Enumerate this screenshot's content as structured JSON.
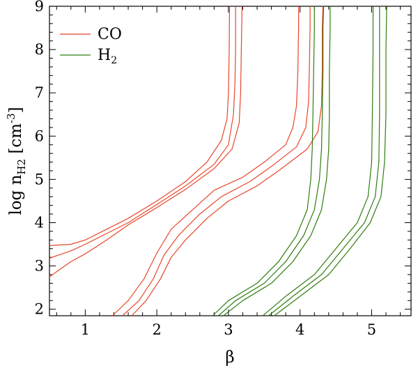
{
  "chart_data": {
    "type": "line",
    "title": "",
    "xlabel": "β",
    "ylabel": {
      "main": "log n",
      "subscript": "H2",
      "unit_open": " [cm",
      "unit_sup": "-3",
      "unit_close": "]"
    },
    "xlim": [
      0.5,
      5.55
    ],
    "ylim": [
      1.85,
      9.0
    ],
    "xticks": [
      1,
      2,
      3,
      4,
      5
    ],
    "yticks": [
      2,
      3,
      4,
      5,
      6,
      7,
      8,
      9
    ],
    "legend": {
      "placement": "top-left",
      "entries": [
        {
          "label": "CO",
          "color": "#e8452a"
        },
        {
          "label": "H",
          "subscript": "2",
          "color": "#2e7d10"
        }
      ]
    },
    "series": [
      {
        "group": "CO",
        "color": "#e8452a",
        "points": [
          [
            0.5,
            3.47
          ],
          [
            0.8,
            3.5
          ],
          [
            1.0,
            3.6
          ],
          [
            1.3,
            3.85
          ],
          [
            1.6,
            4.1
          ],
          [
            2.0,
            4.5
          ],
          [
            2.4,
            4.95
          ],
          [
            2.7,
            5.4
          ],
          [
            2.9,
            5.9
          ],
          [
            2.98,
            6.4
          ],
          [
            3.0,
            7.0
          ],
          [
            3.01,
            8.0
          ],
          [
            3.015,
            9.0
          ]
        ]
      },
      {
        "group": "CO",
        "color": "#e8452a",
        "points": [
          [
            0.5,
            3.18
          ],
          [
            0.8,
            3.35
          ],
          [
            1.0,
            3.5
          ],
          [
            1.3,
            3.75
          ],
          [
            1.6,
            4.0
          ],
          [
            2.0,
            4.42
          ],
          [
            2.4,
            4.85
          ],
          [
            2.8,
            5.35
          ],
          [
            3.0,
            5.8
          ],
          [
            3.07,
            6.5
          ],
          [
            3.09,
            7.2
          ],
          [
            3.1,
            8.0
          ],
          [
            3.1,
            9.0
          ]
        ]
      },
      {
        "group": "CO",
        "color": "#e8452a",
        "points": [
          [
            0.5,
            2.75
          ],
          [
            0.8,
            3.1
          ],
          [
            1.0,
            3.28
          ],
          [
            1.3,
            3.6
          ],
          [
            1.6,
            3.95
          ],
          [
            2.0,
            4.35
          ],
          [
            2.4,
            4.77
          ],
          [
            2.8,
            5.25
          ],
          [
            3.05,
            5.7
          ],
          [
            3.15,
            6.3
          ],
          [
            3.17,
            7.0
          ],
          [
            3.18,
            8.0
          ],
          [
            3.19,
            9.0
          ]
        ]
      },
      {
        "group": "CO",
        "color": "#e8452a",
        "points": [
          [
            1.38,
            1.85
          ],
          [
            1.6,
            2.2
          ],
          [
            1.82,
            2.7
          ],
          [
            2.0,
            3.3
          ],
          [
            2.2,
            3.85
          ],
          [
            2.5,
            4.3
          ],
          [
            2.8,
            4.75
          ],
          [
            3.2,
            5.05
          ],
          [
            3.5,
            5.4
          ],
          [
            3.8,
            5.8
          ],
          [
            3.9,
            6.2
          ],
          [
            3.95,
            6.7
          ],
          [
            3.97,
            7.5
          ],
          [
            3.98,
            8.5
          ],
          [
            3.98,
            9.0
          ]
        ]
      },
      {
        "group": "CO",
        "color": "#e8452a",
        "points": [
          [
            1.52,
            1.85
          ],
          [
            1.75,
            2.2
          ],
          [
            1.95,
            2.7
          ],
          [
            2.1,
            3.25
          ],
          [
            2.3,
            3.7
          ],
          [
            2.6,
            4.2
          ],
          [
            2.9,
            4.6
          ],
          [
            3.3,
            4.95
          ],
          [
            3.6,
            5.3
          ],
          [
            3.95,
            5.75
          ],
          [
            4.08,
            6.2
          ],
          [
            4.12,
            6.8
          ],
          [
            4.13,
            7.6
          ],
          [
            4.14,
            8.5
          ],
          [
            4.14,
            9.0
          ]
        ]
      },
      {
        "group": "CO",
        "color": "#e8452a",
        "points": [
          [
            1.65,
            1.85
          ],
          [
            1.85,
            2.2
          ],
          [
            2.05,
            2.7
          ],
          [
            2.2,
            3.2
          ],
          [
            2.4,
            3.6
          ],
          [
            2.7,
            4.1
          ],
          [
            3.0,
            4.5
          ],
          [
            3.4,
            4.85
          ],
          [
            3.7,
            5.2
          ],
          [
            4.1,
            5.7
          ],
          [
            4.25,
            6.1
          ],
          [
            4.3,
            6.7
          ],
          [
            4.31,
            7.5
          ],
          [
            4.31,
            8.5
          ],
          [
            4.32,
            9.0
          ]
        ]
      },
      {
        "group": "H2",
        "color": "#2e7d10",
        "points": [
          [
            2.78,
            1.85
          ],
          [
            3.0,
            2.2
          ],
          [
            3.4,
            2.6
          ],
          [
            3.7,
            3.1
          ],
          [
            3.95,
            3.7
          ],
          [
            4.1,
            4.3
          ],
          [
            4.15,
            5.0
          ],
          [
            4.17,
            5.7
          ],
          [
            4.18,
            6.5
          ],
          [
            4.19,
            7.5
          ],
          [
            4.2,
            8.5
          ],
          [
            4.2,
            9.0
          ]
        ]
      },
      {
        "group": "H2",
        "color": "#2e7d10",
        "points": [
          [
            2.86,
            1.85
          ],
          [
            3.1,
            2.2
          ],
          [
            3.5,
            2.6
          ],
          [
            3.8,
            3.1
          ],
          [
            4.05,
            3.7
          ],
          [
            4.2,
            4.3
          ],
          [
            4.27,
            5.0
          ],
          [
            4.3,
            5.7
          ],
          [
            4.31,
            6.5
          ],
          [
            4.32,
            7.5
          ],
          [
            4.32,
            8.5
          ],
          [
            4.33,
            9.0
          ]
        ]
      },
      {
        "group": "H2",
        "color": "#2e7d10",
        "points": [
          [
            2.93,
            1.85
          ],
          [
            3.2,
            2.2
          ],
          [
            3.6,
            2.6
          ],
          [
            3.9,
            3.1
          ],
          [
            4.15,
            3.7
          ],
          [
            4.3,
            4.3
          ],
          [
            4.37,
            5.0
          ],
          [
            4.4,
            5.7
          ],
          [
            4.41,
            6.5
          ],
          [
            4.41,
            7.5
          ],
          [
            4.42,
            8.5
          ],
          [
            4.42,
            9.0
          ]
        ]
      },
      {
        "group": "H2",
        "color": "#2e7d10",
        "points": [
          [
            3.48,
            1.85
          ],
          [
            3.8,
            2.3
          ],
          [
            4.2,
            2.8
          ],
          [
            4.5,
            3.4
          ],
          [
            4.8,
            4.0
          ],
          [
            4.95,
            4.6
          ],
          [
            5.0,
            5.4
          ],
          [
            5.01,
            6.5
          ],
          [
            5.02,
            8.0
          ],
          [
            5.02,
            9.0
          ]
        ]
      },
      {
        "group": "H2",
        "color": "#2e7d10",
        "points": [
          [
            3.56,
            1.85
          ],
          [
            3.9,
            2.3
          ],
          [
            4.3,
            2.8
          ],
          [
            4.6,
            3.4
          ],
          [
            4.9,
            4.0
          ],
          [
            5.05,
            4.6
          ],
          [
            5.1,
            5.4
          ],
          [
            5.11,
            6.5
          ],
          [
            5.11,
            8.0
          ],
          [
            5.11,
            9.0
          ]
        ]
      },
      {
        "group": "H2",
        "color": "#2e7d10",
        "points": [
          [
            3.64,
            1.85
          ],
          [
            4.0,
            2.3
          ],
          [
            4.4,
            2.8
          ],
          [
            4.7,
            3.4
          ],
          [
            4.98,
            4.0
          ],
          [
            5.13,
            4.6
          ],
          [
            5.18,
            5.4
          ],
          [
            5.2,
            6.5
          ],
          [
            5.2,
            8.0
          ],
          [
            5.21,
            9.0
          ]
        ]
      }
    ]
  }
}
